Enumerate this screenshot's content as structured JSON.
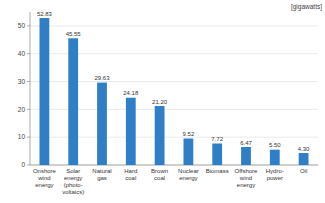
{
  "chart_data": {
    "type": "bar",
    "y_label": "[gigawatts]",
    "categories": [
      "Onshore\nwind\nenergy",
      "Solar\nenergy\n(photo-\nvoltaics)",
      "Natural\ngas",
      "Hard\ncoal",
      "Brown\ncoal",
      "Nuclear\nenergy",
      "Biomass",
      "Offshore\nwind\nenergy",
      "Hydro-\npower",
      "Oil"
    ],
    "values": [
      52.83,
      45.55,
      29.63,
      24.18,
      21.2,
      9.52,
      7.72,
      6.47,
      5.5,
      4.3
    ],
    "value_labels": [
      "52.83",
      "45.55",
      "29.63",
      "24.18",
      "21.20",
      "9.52",
      "7.72",
      "6.47",
      "5.50",
      "4.30"
    ],
    "color": "#2f7fc6",
    "ylim": [
      0,
      55
    ],
    "yticks": [
      0,
      10,
      20,
      30,
      40,
      50
    ],
    "grid": true,
    "data_labels": true
  }
}
